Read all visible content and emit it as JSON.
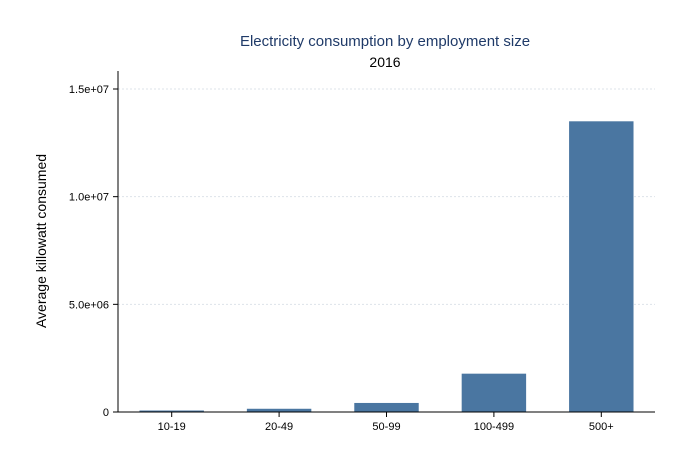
{
  "chart_data": {
    "type": "bar",
    "title": "Electricity consumption by employment size",
    "subtitle": "2016",
    "xlabel": "",
    "ylabel": "Average killowatt consumed",
    "categories": [
      "10-19",
      "20-49",
      "50-99",
      "100-499",
      "500+"
    ],
    "values": [
      40000,
      150000,
      420000,
      1780000,
      13500000
    ],
    "ylim": [
      0,
      15000000
    ],
    "yticks": [
      {
        "value": 0,
        "label": "0"
      },
      {
        "value": 5000000,
        "label": "5.0e+06"
      },
      {
        "value": 10000000,
        "label": "1.0e+07"
      },
      {
        "value": 15000000,
        "label": "1.5e+07"
      }
    ],
    "grid": true,
    "legend": "none",
    "colors": {
      "bar": "#4a76a1",
      "title": "#1f3a68"
    }
  }
}
